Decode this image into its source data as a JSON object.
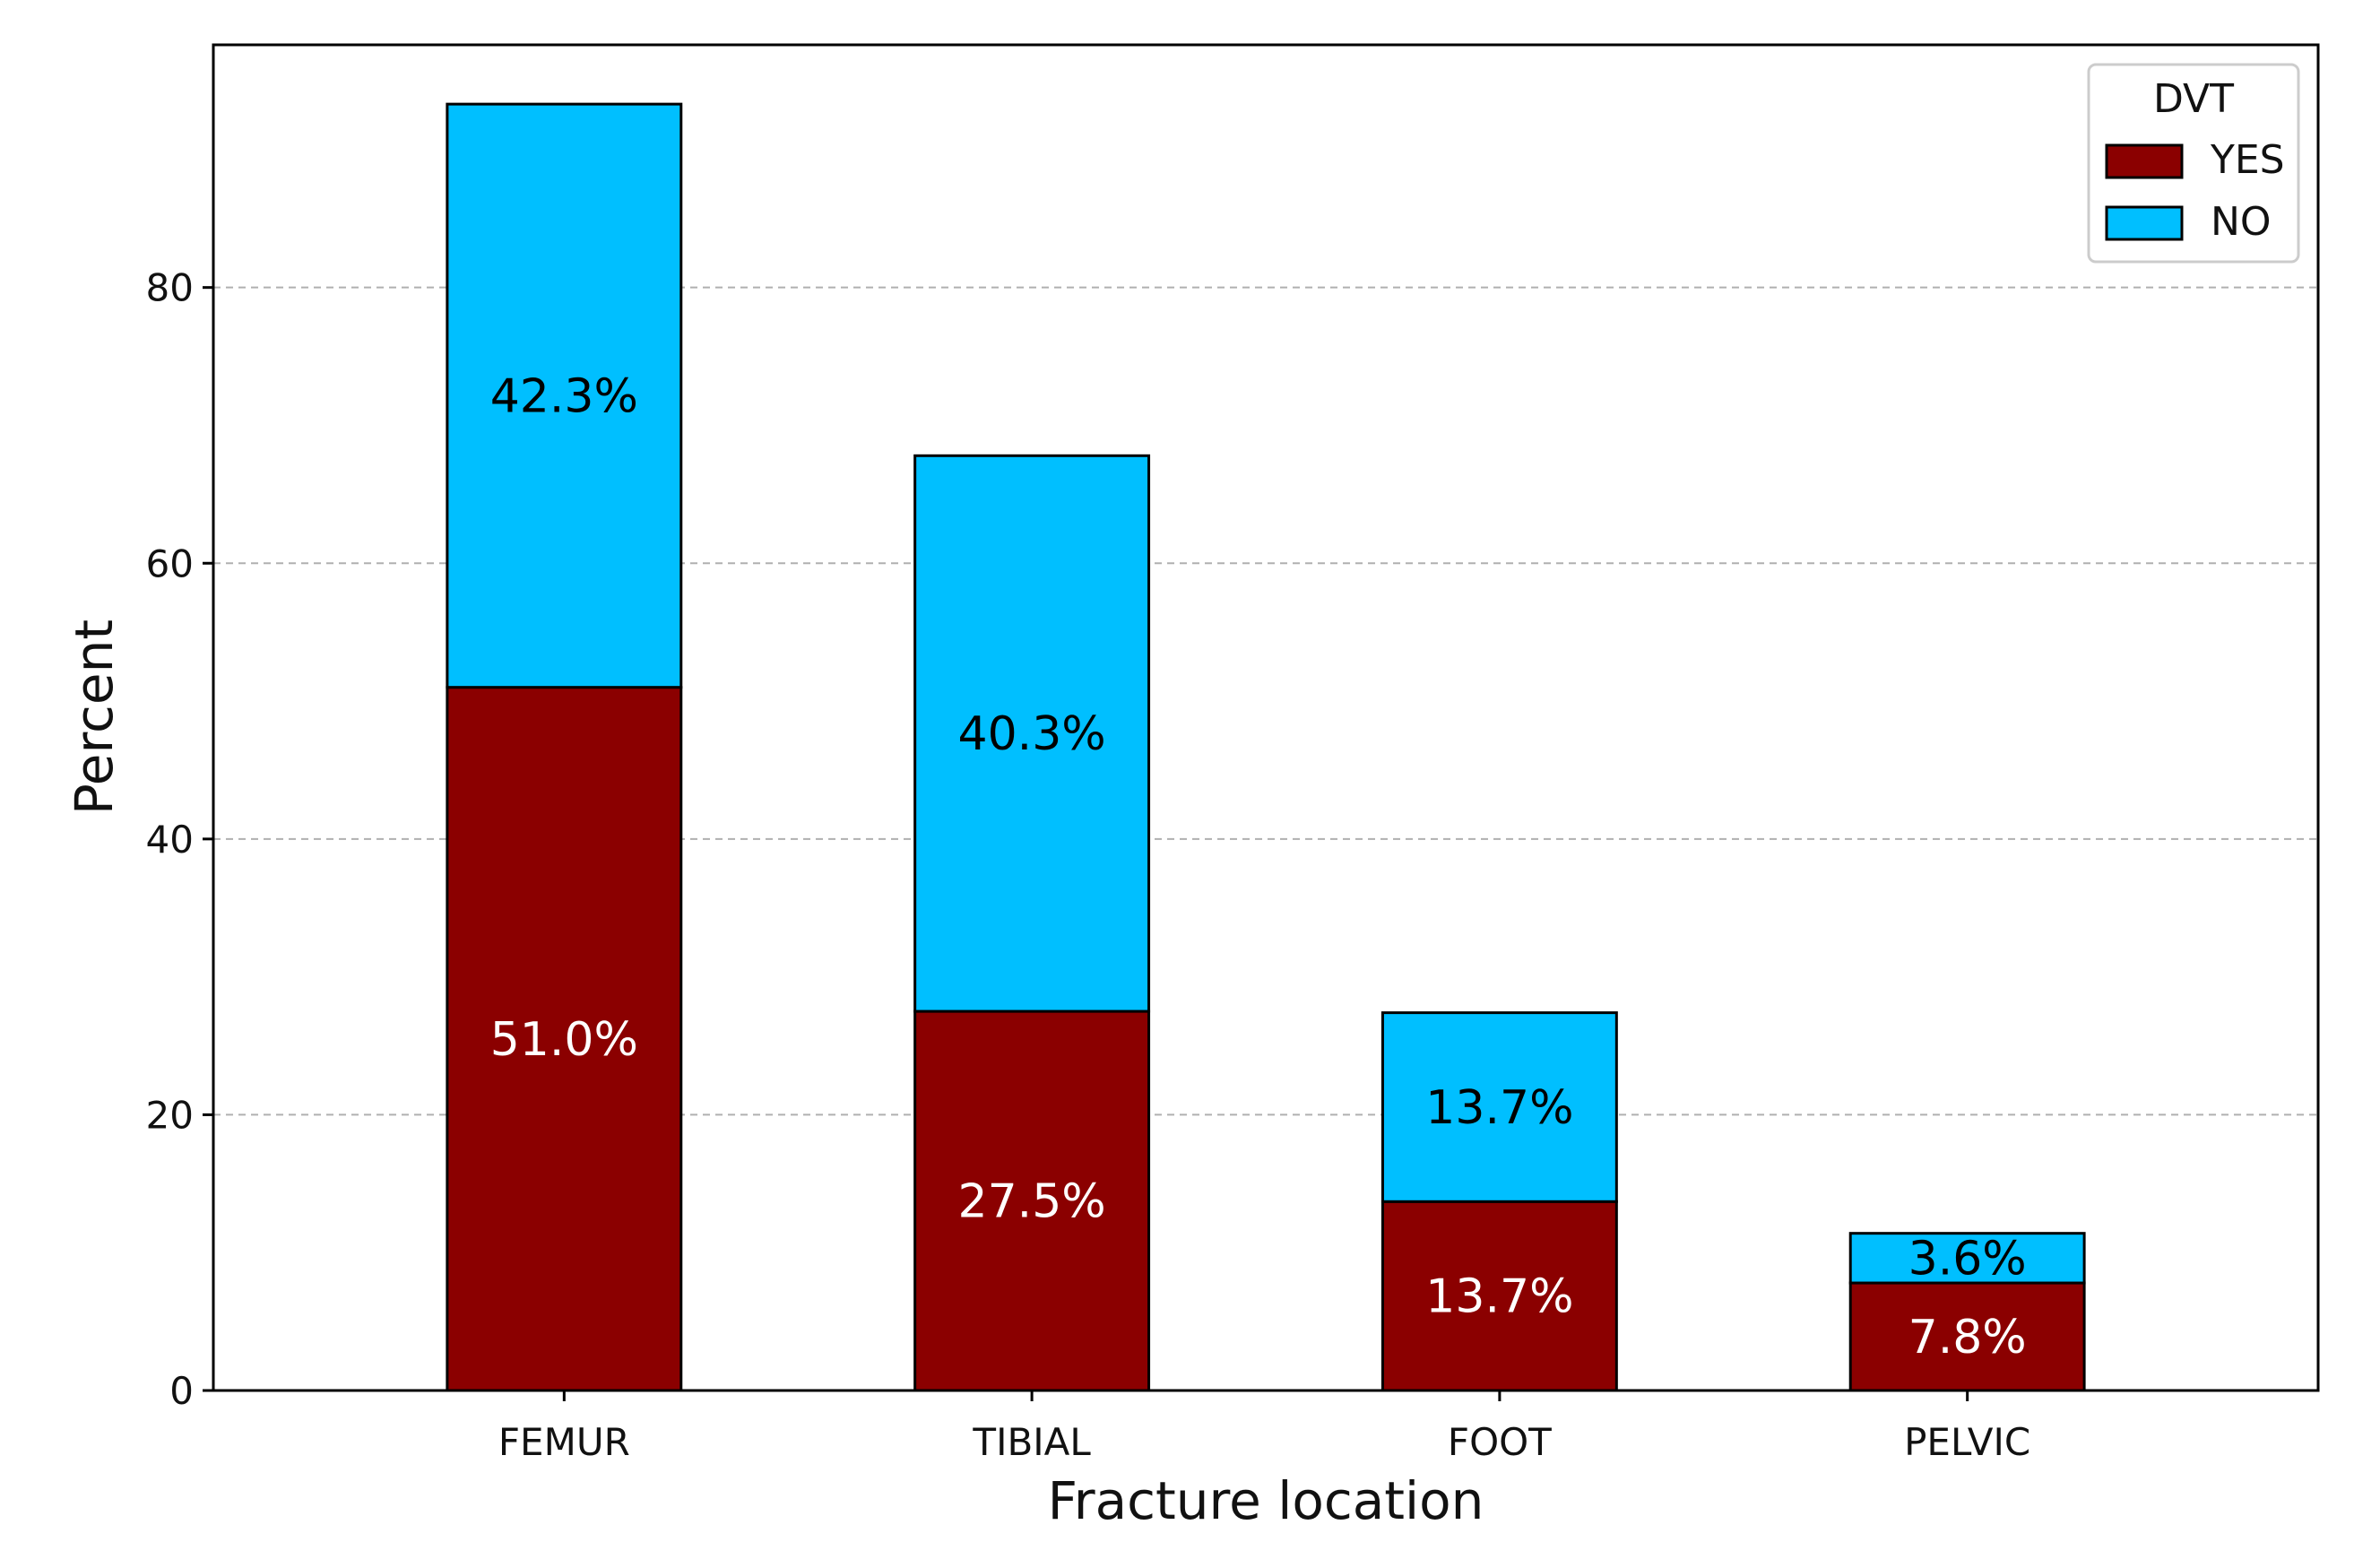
{
  "chart_data": {
    "type": "bar",
    "stacked": true,
    "categories": [
      "FEMUR",
      "TIBIAL",
      "FOOT",
      "PELVIC"
    ],
    "series": [
      {
        "name": "YES",
        "values": [
          51.0,
          27.5,
          13.7,
          7.8
        ],
        "labels": [
          "51.0%",
          "27.5%",
          "13.7%",
          "7.8%"
        ],
        "color": "#8b0000",
        "label_color": "#ffffff"
      },
      {
        "name": "NO",
        "values": [
          42.3,
          40.3,
          13.7,
          3.6
        ],
        "labels": [
          "42.3%",
          "40.3%",
          "13.7%",
          "3.6%"
        ],
        "color": "#00bfff",
        "label_color": "#000000"
      }
    ],
    "xlabel": "Fracture location",
    "ylabel": "Percent",
    "ylim": [
      0,
      97.6
    ],
    "yticks": [
      0,
      20,
      40,
      60,
      80
    ],
    "grid": "horizontal dashed",
    "legend": {
      "title": "DVT",
      "placement": "top-right"
    }
  }
}
